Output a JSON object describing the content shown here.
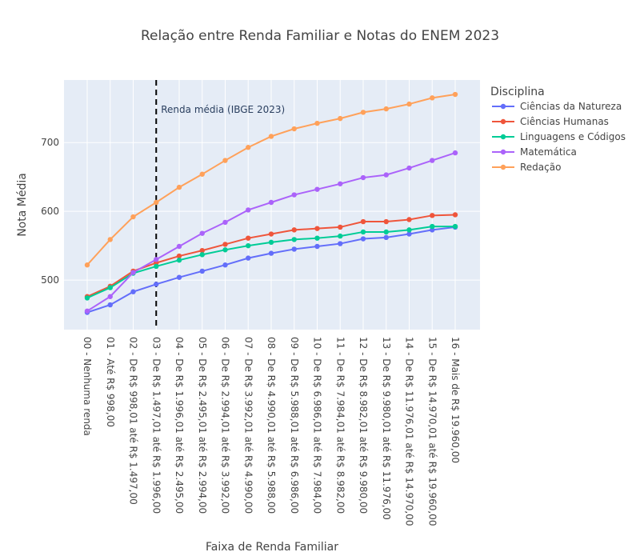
{
  "chart_data": {
    "type": "line",
    "title": "Relação entre Renda Familiar e Notas do ENEM 2023",
    "xlabel": "Faixa de Renda Familiar",
    "ylabel": "Nota Média",
    "ylim": [
      428,
      791
    ],
    "yticks": [
      500,
      600,
      700
    ],
    "grid": true,
    "legend_title": "Disciplina",
    "legend_position": "right",
    "categories": [
      "00 - Nenhuma renda",
      "01 - Até R$ 998,00",
      "02 - De R$ 998,01 até R$ 1.497,00",
      "03 - De R$ 1.497,01 até R$ 1.996,00",
      "04 - De R$ 1.996,01 até R$ 2.495,00",
      "05 - De R$ 2.495,01 até R$ 2.994,00",
      "06 - De R$ 2.994,01 até R$ 3.992,00",
      "07 - De R$ 3.992,01 até R$ 4.990,00",
      "08 - De R$ 4.990,01 até R$ 5.988,00",
      "09 - De R$ 5.988,01 até R$ 6.986,00",
      "10 - De R$ 6.986,01 até R$ 7.984,00",
      "11 - De R$ 7.984,01 até R$ 8.982,00",
      "12 - De R$ 8.982,01 até R$ 9.980,00",
      "13 - De R$ 9.980,01 até R$ 11.976,00",
      "14 - De R$ 11.976,01 até R$ 14.970,00",
      "15 - De R$ 14.970,01 até R$ 19.960,00",
      "16 - Mais de R$ 19.960,00"
    ],
    "series": [
      {
        "name": "Ciências da Natureza",
        "color": "#636efa",
        "values": [
          453,
          464,
          483,
          494,
          504,
          513,
          522,
          532,
          539,
          545,
          549,
          553,
          560,
          562,
          567,
          573,
          577
        ]
      },
      {
        "name": "Ciências Humanas",
        "color": "#ef553b",
        "values": [
          476,
          491,
          513,
          525,
          535,
          543,
          552,
          561,
          567,
          573,
          575,
          577,
          585,
          585,
          588,
          594,
          595
        ]
      },
      {
        "name": "Linguagens e Códigos",
        "color": "#00cc96",
        "values": [
          474,
          489,
          510,
          520,
          529,
          537,
          544,
          550,
          555,
          559,
          561,
          564,
          570,
          570,
          573,
          578,
          578
        ]
      },
      {
        "name": "Matemática",
        "color": "#ab63fa",
        "values": [
          455,
          476,
          511,
          530,
          549,
          568,
          584,
          602,
          613,
          624,
          632,
          640,
          649,
          653,
          663,
          674,
          685
        ]
      },
      {
        "name": "Redação",
        "color": "#ffa15a",
        "values": [
          522,
          559,
          592,
          613,
          635,
          654,
          674,
          693,
          709,
          720,
          728,
          735,
          744,
          749,
          756,
          765,
          770
        ]
      }
    ],
    "annotation": {
      "text": "Renda média (IBGE 2023)",
      "x_index": 3,
      "line_style": "dashed",
      "line_color": "#000000"
    }
  }
}
